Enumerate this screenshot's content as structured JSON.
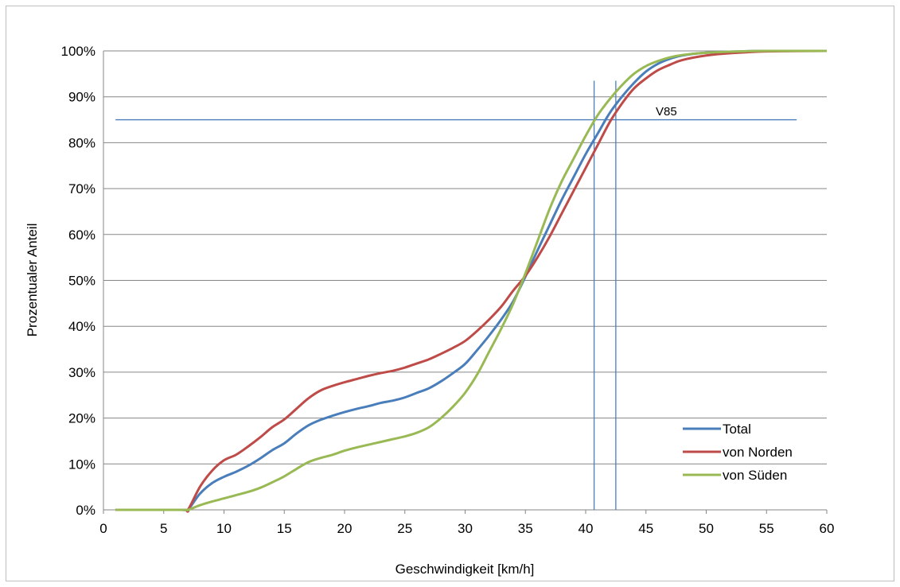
{
  "chart_data": {
    "type": "line",
    "title": "",
    "xlabel": "Geschwindigkeit [km/h]",
    "ylabel": "Prozentualer Anteil",
    "xlim": [
      0,
      60
    ],
    "ylim": [
      0,
      100
    ],
    "x_ticks": [
      "0",
      "5",
      "10",
      "15",
      "20",
      "25",
      "30",
      "35",
      "40",
      "45",
      "50",
      "55",
      "60"
    ],
    "y_ticks": [
      "0%",
      "10%",
      "20%",
      "30%",
      "40%",
      "50%",
      "60%",
      "70%",
      "80%",
      "90%",
      "100%"
    ],
    "grid": "horizontal",
    "legend_position": "bottom-right",
    "series": [
      {
        "name": "Total",
        "color": "#4a7ebb",
        "points": [
          [
            1,
            0
          ],
          [
            6.5,
            0
          ],
          [
            7,
            0
          ],
          [
            8,
            3.5
          ],
          [
            9,
            5.8
          ],
          [
            10,
            7.2
          ],
          [
            11,
            8.3
          ],
          [
            12,
            9.6
          ],
          [
            13,
            11.2
          ],
          [
            14,
            13
          ],
          [
            15,
            14.5
          ],
          [
            16,
            16.6
          ],
          [
            17,
            18.4
          ],
          [
            18,
            19.6
          ],
          [
            19,
            20.5
          ],
          [
            20,
            21.3
          ],
          [
            21,
            22
          ],
          [
            22,
            22.6
          ],
          [
            23,
            23.3
          ],
          [
            24,
            23.8
          ],
          [
            25,
            24.5
          ],
          [
            26,
            25.5
          ],
          [
            27,
            26.5
          ],
          [
            28,
            28
          ],
          [
            29,
            29.8
          ],
          [
            30,
            31.8
          ],
          [
            31,
            34.8
          ],
          [
            32,
            38
          ],
          [
            33,
            41.5
          ],
          [
            34,
            45.5
          ],
          [
            35,
            50.8
          ],
          [
            36,
            56.5
          ],
          [
            37,
            62
          ],
          [
            38,
            67.5
          ],
          [
            39,
            72.5
          ],
          [
            40,
            77.5
          ],
          [
            41,
            82
          ],
          [
            42,
            86.5
          ],
          [
            43,
            90
          ],
          [
            44,
            93
          ],
          [
            45,
            95.5
          ],
          [
            46,
            97.2
          ],
          [
            47,
            98.3
          ],
          [
            48,
            99
          ],
          [
            50,
            99.6
          ],
          [
            53,
            99.9
          ],
          [
            55,
            100
          ],
          [
            60,
            100
          ]
        ]
      },
      {
        "name": "von Norden",
        "color": "#be4b48",
        "points": [
          [
            1,
            0
          ],
          [
            6.5,
            0
          ],
          [
            7,
            0
          ],
          [
            8,
            5
          ],
          [
            9,
            8.5
          ],
          [
            10,
            10.8
          ],
          [
            11,
            12
          ],
          [
            12,
            13.8
          ],
          [
            13,
            15.8
          ],
          [
            14,
            18
          ],
          [
            15,
            19.7
          ],
          [
            16,
            22
          ],
          [
            17,
            24.3
          ],
          [
            18,
            26
          ],
          [
            19,
            27
          ],
          [
            20,
            27.8
          ],
          [
            21,
            28.5
          ],
          [
            22,
            29.2
          ],
          [
            23,
            29.8
          ],
          [
            24,
            30.3
          ],
          [
            25,
            31
          ],
          [
            26,
            31.9
          ],
          [
            27,
            32.8
          ],
          [
            28,
            34
          ],
          [
            29,
            35.3
          ],
          [
            30,
            36.8
          ],
          [
            31,
            39
          ],
          [
            32,
            41.5
          ],
          [
            33,
            44.3
          ],
          [
            34,
            47.8
          ],
          [
            35,
            51
          ],
          [
            36,
            55
          ],
          [
            37,
            59.5
          ],
          [
            38,
            64.5
          ],
          [
            39,
            69.5
          ],
          [
            40,
            74.5
          ],
          [
            41,
            79.5
          ],
          [
            42,
            84.5
          ],
          [
            43,
            88.5
          ],
          [
            44,
            91.8
          ],
          [
            45,
            94
          ],
          [
            46,
            95.8
          ],
          [
            47,
            97
          ],
          [
            48,
            98
          ],
          [
            50,
            99
          ],
          [
            52,
            99.5
          ],
          [
            55,
            99.9
          ],
          [
            60,
            100
          ]
        ]
      },
      {
        "name": "von Süden",
        "color": "#98b954",
        "points": [
          [
            1,
            0
          ],
          [
            6.5,
            0
          ],
          [
            7,
            0
          ],
          [
            8,
            1
          ],
          [
            9,
            1.8
          ],
          [
            10,
            2.5
          ],
          [
            11,
            3.2
          ],
          [
            12,
            3.9
          ],
          [
            13,
            4.8
          ],
          [
            14,
            6
          ],
          [
            15,
            7.3
          ],
          [
            16,
            8.9
          ],
          [
            17,
            10.4
          ],
          [
            18,
            11.3
          ],
          [
            19,
            12
          ],
          [
            20,
            12.9
          ],
          [
            21,
            13.6
          ],
          [
            22,
            14.2
          ],
          [
            23,
            14.8
          ],
          [
            24,
            15.4
          ],
          [
            25,
            16
          ],
          [
            26,
            16.8
          ],
          [
            27,
            18
          ],
          [
            28,
            20
          ],
          [
            29,
            22.5
          ],
          [
            30,
            25.5
          ],
          [
            31,
            29.5
          ],
          [
            32,
            34.5
          ],
          [
            33,
            39.5
          ],
          [
            34,
            45
          ],
          [
            35,
            51.5
          ],
          [
            36,
            58.5
          ],
          [
            37,
            65.5
          ],
          [
            38,
            71.5
          ],
          [
            39,
            76.5
          ],
          [
            40,
            81.5
          ],
          [
            41,
            86
          ],
          [
            42,
            89.5
          ],
          [
            43,
            92.5
          ],
          [
            44,
            95
          ],
          [
            45,
            96.7
          ],
          [
            46,
            97.8
          ],
          [
            47,
            98.6
          ],
          [
            48,
            99.1
          ],
          [
            50,
            99.6
          ],
          [
            53,
            99.9
          ],
          [
            55,
            100
          ],
          [
            60,
            100
          ]
        ]
      }
    ],
    "annotations": {
      "v85_label": "V85",
      "v85_line_y": 85,
      "v85_line_x_end": 57.5,
      "vertical_lines_x": [
        40.7,
        42.5
      ],
      "vertical_lines_top": 93.5,
      "line_color": "#4a7ebb"
    }
  }
}
